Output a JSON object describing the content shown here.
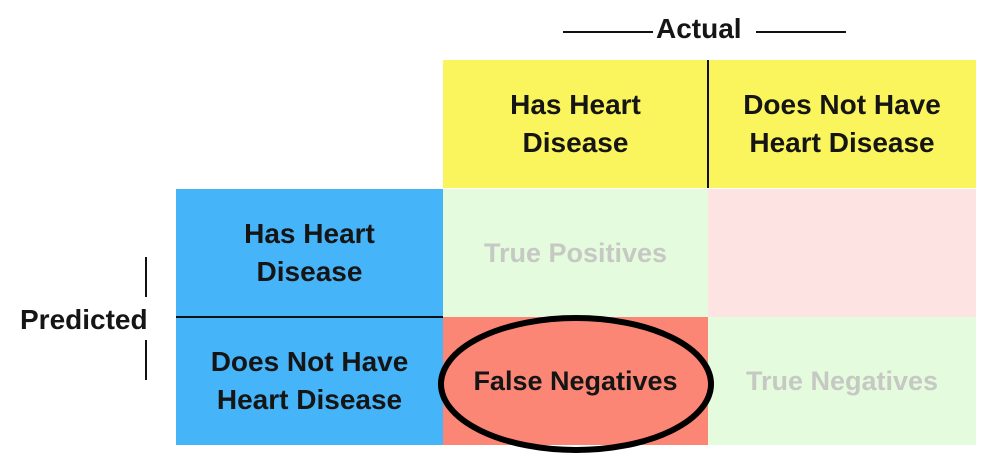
{
  "axes": {
    "actual_label": "Actual",
    "predicted_label": "Predicted"
  },
  "column_headers": [
    "Has Heart\nDisease",
    "Does Not Have\nHeart Disease"
  ],
  "row_headers": [
    "Has Heart\nDisease",
    "Does Not Have\nHeart Disease"
  ],
  "cells": {
    "true_positives": "True Positives",
    "false_positives": "",
    "false_negatives": "False Negatives",
    "true_negatives": "True Negatives"
  },
  "highlight": "false_negatives",
  "colors": {
    "header_yellow": "#fbf55d",
    "header_blue": "#46b4f8",
    "true_cell_green": "#e4fbde",
    "false_positive_pink": "#fde3e2",
    "false_negative_red": "#fb8675",
    "true_cell_text": "#c6c9c3"
  }
}
